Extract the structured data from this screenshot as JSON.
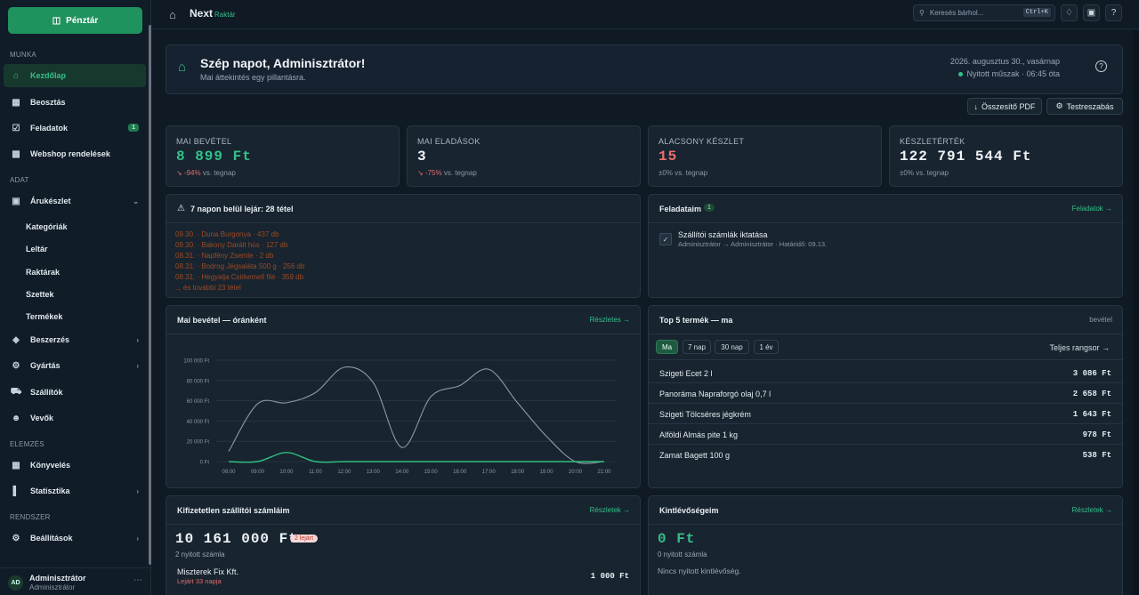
{
  "sidebar": {
    "cash_label": "Pénztár",
    "sections": {
      "munka": "MUNKA",
      "adat": "ADAT",
      "elemzes": "ELEMZÉS",
      "rendszer": "RENDSZER"
    },
    "items": {
      "kezdolap": "Kezdőlap",
      "beosztas": "Beosztás",
      "feladatok": "Feladatok",
      "feladatok_badge": "1",
      "webshop": "Webshop rendelések",
      "arukeszlet": "Árukészlet",
      "kategoriak": "Kategóriák",
      "leltar": "Leltár",
      "raktarak": "Raktárak",
      "szettek": "Szettek",
      "termekek": "Termékek",
      "beszerzes": "Beszerzés",
      "gyartas": "Gyártás",
      "szallitok": "Szállítók",
      "vevok": "Vevők",
      "konyveles": "Könyvelés",
      "statisztika": "Statisztika",
      "beallitasok": "Beállítások"
    },
    "user": {
      "initials": "AD",
      "name": "Adminisztrátor",
      "role": "Adminisztrátor"
    }
  },
  "topbar": {
    "logo_main": "Next",
    "logo_sub": "Raktár",
    "search_placeholder": "Keresés bárhol...",
    "search_kbd": "Ctrl+K"
  },
  "greeting": {
    "title": "Szép napot, Adminisztrátor!",
    "subtitle": "Mai áttekintés egy pillantásra.",
    "date": "2026. augusztus 30., vasárnap",
    "shift": "Nyitott műszak · 06:45 óta"
  },
  "actions": {
    "pdf": "Összesítő PDF",
    "customize": "Testreszabás"
  },
  "kpis": [
    {
      "label": "MAI BEVÉTEL",
      "value": "8 899 Ft",
      "delta": "-94%",
      "note": "vs. tegnap"
    },
    {
      "label": "MAI ELADÁSOK",
      "value": "3",
      "delta": "-75%",
      "note": "vs. tegnap"
    },
    {
      "label": "ALACSONY KÉSZLET",
      "value": "15",
      "delta": "±0%",
      "note": "vs. tegnap"
    },
    {
      "label": "KÉSZLETÉRTÉK",
      "value": "122 791 544 Ft",
      "delta": "±0%",
      "note": "vs. tegnap"
    }
  ],
  "expiring": {
    "title": "7 napon belül lejár: 28 tétel",
    "lines": [
      "09.30. · Duna Burgonya · 437 db",
      "09.30. · Bakony Darált hús · 127 db",
      "08.31. · Napfény Zsemle · 2 db",
      "08.31. · Bodrog Jégsaláta 500 g · 256 db",
      "08.31. · Hegyalja Csirkemell filé · 359 db",
      "... és további 23 tétel"
    ]
  },
  "tasks": {
    "title": "Feladataim",
    "badge": "1",
    "link": "Feladatok →",
    "item_title": "Szállítói számlák iktatása",
    "item_meta": "Adminisztrátor → Adminisztrátor · Határidő: 09.13."
  },
  "revenue_chart": {
    "title": "Mai bevétel — óránként",
    "link": "Részletes →"
  },
  "chart_data": {
    "type": "line",
    "x": [
      "08:00",
      "09:00",
      "10:00",
      "11:00",
      "12:00",
      "13:00",
      "14:00",
      "15:00",
      "16:00",
      "17:00",
      "18:00",
      "19:00",
      "20:00",
      "21:00"
    ],
    "yticks": [
      "0 Ft",
      "20 000 Ft",
      "40 000 Ft",
      "60 000 Ft",
      "80 000 Ft",
      "100 000 Ft"
    ],
    "ylim": [
      0,
      100000
    ],
    "grid": true,
    "series": [
      {
        "color": "#8f9aa6",
        "values": [
          10000,
          57000,
          58000,
          68000,
          93000,
          78000,
          14000,
          64000,
          75000,
          91000,
          58000,
          25000,
          0,
          0
        ]
      },
      {
        "color": "#2fbf7f",
        "values": [
          0,
          0,
          8899,
          0,
          0,
          0,
          0,
          0,
          0,
          0,
          0,
          0,
          0,
          0
        ]
      }
    ]
  },
  "top5": {
    "title": "Top 5 termék — ma",
    "unit": "bevétel",
    "tabs": [
      "Ma",
      "7 nap",
      "30 nap",
      "1 év"
    ],
    "link": "Teljes rangsor →",
    "rows": [
      {
        "name": "Szigeti Ecet 2 l",
        "value": "3 086 Ft"
      },
      {
        "name": "Panoráma Napraforgó olaj 0,7 l",
        "value": "2 658 Ft"
      },
      {
        "name": "Szigeti Tölcséres jégkrém",
        "value": "1 643 Ft"
      },
      {
        "name": "Alföldi Almás pite 1 kg",
        "value": "978 Ft"
      },
      {
        "name": "Zamat Bagett 100 g",
        "value": "538 Ft"
      }
    ]
  },
  "unpaid": {
    "title": "Kifizetetlen szállítói számláim",
    "link": "Részletek →",
    "amount": "10 161 000 Ft",
    "badge": "2 lejárt",
    "count": "2 nyitott számla",
    "row_name": "Miszterek Fix Kft.",
    "row_meta": "Lejárt 33 napja",
    "row_value": "1 000 Ft"
  },
  "receivables": {
    "title": "Kintlévőségeim",
    "link": "Részletek →",
    "amount": "0 Ft",
    "count": "0 nyitott számla",
    "empty": "Nincs nyitott kintlévőség."
  }
}
